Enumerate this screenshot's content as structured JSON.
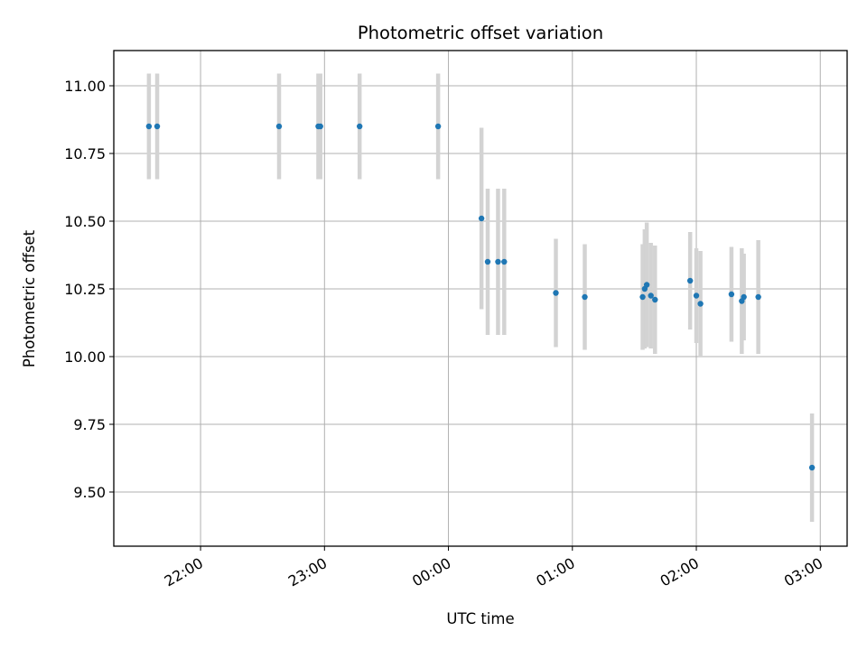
{
  "chart_data": {
    "type": "scatter",
    "title": "Photometric offset variation",
    "xlabel": "UTC time",
    "ylabel": "Photometric offset",
    "x_axis_kind": "time",
    "xlim": [
      "21:18",
      "03:13"
    ],
    "ylim": [
      9.3,
      11.13
    ],
    "grid": true,
    "x_ticks": [
      "22:00",
      "23:00",
      "00:00",
      "01:00",
      "02:00",
      "03:00"
    ],
    "y_ticks": [
      "9.50",
      "9.75",
      "10.00",
      "10.25",
      "10.50",
      "10.75",
      "11.00"
    ],
    "marker_color": "#1f77b4",
    "errorbar_color": "#d3d3d3",
    "points": [
      {
        "time": "21:35",
        "y": 10.85,
        "err": 0.195
      },
      {
        "time": "21:39",
        "y": 10.85,
        "err": 0.195
      },
      {
        "time": "22:38",
        "y": 10.85,
        "err": 0.195
      },
      {
        "time": "22:57",
        "y": 10.85,
        "err": 0.195
      },
      {
        "time": "22:58",
        "y": 10.85,
        "err": 0.195
      },
      {
        "time": "23:17",
        "y": 10.85,
        "err": 0.195
      },
      {
        "time": "23:55",
        "y": 10.85,
        "err": 0.195
      },
      {
        "time": "00:16",
        "y": 10.51,
        "err": 0.335
      },
      {
        "time": "00:19",
        "y": 10.35,
        "err": 0.27
      },
      {
        "time": "00:24",
        "y": 10.35,
        "err": 0.27
      },
      {
        "time": "00:27",
        "y": 10.35,
        "err": 0.27
      },
      {
        "time": "00:52",
        "y": 10.235,
        "err": 0.2
      },
      {
        "time": "01:06",
        "y": 10.22,
        "err": 0.195
      },
      {
        "time": "01:34",
        "y": 10.22,
        "err": 0.195
      },
      {
        "time": "01:35",
        "y": 10.25,
        "err": 0.22
      },
      {
        "time": "01:36",
        "y": 10.265,
        "err": 0.23
      },
      {
        "time": "01:38",
        "y": 10.225,
        "err": 0.195
      },
      {
        "time": "01:40",
        "y": 10.21,
        "err": 0.2
      },
      {
        "time": "01:57",
        "y": 10.28,
        "err": 0.18
      },
      {
        "time": "02:00",
        "y": 10.225,
        "err": 0.175
      },
      {
        "time": "02:02",
        "y": 10.195,
        "err": 0.195
      },
      {
        "time": "02:17",
        "y": 10.23,
        "err": 0.175
      },
      {
        "time": "02:22",
        "y": 10.205,
        "err": 0.195
      },
      {
        "time": "02:23",
        "y": 10.22,
        "err": 0.16
      },
      {
        "time": "02:30",
        "y": 10.22,
        "err": 0.21
      },
      {
        "time": "02:56",
        "y": 9.59,
        "err": 0.2
      }
    ]
  }
}
